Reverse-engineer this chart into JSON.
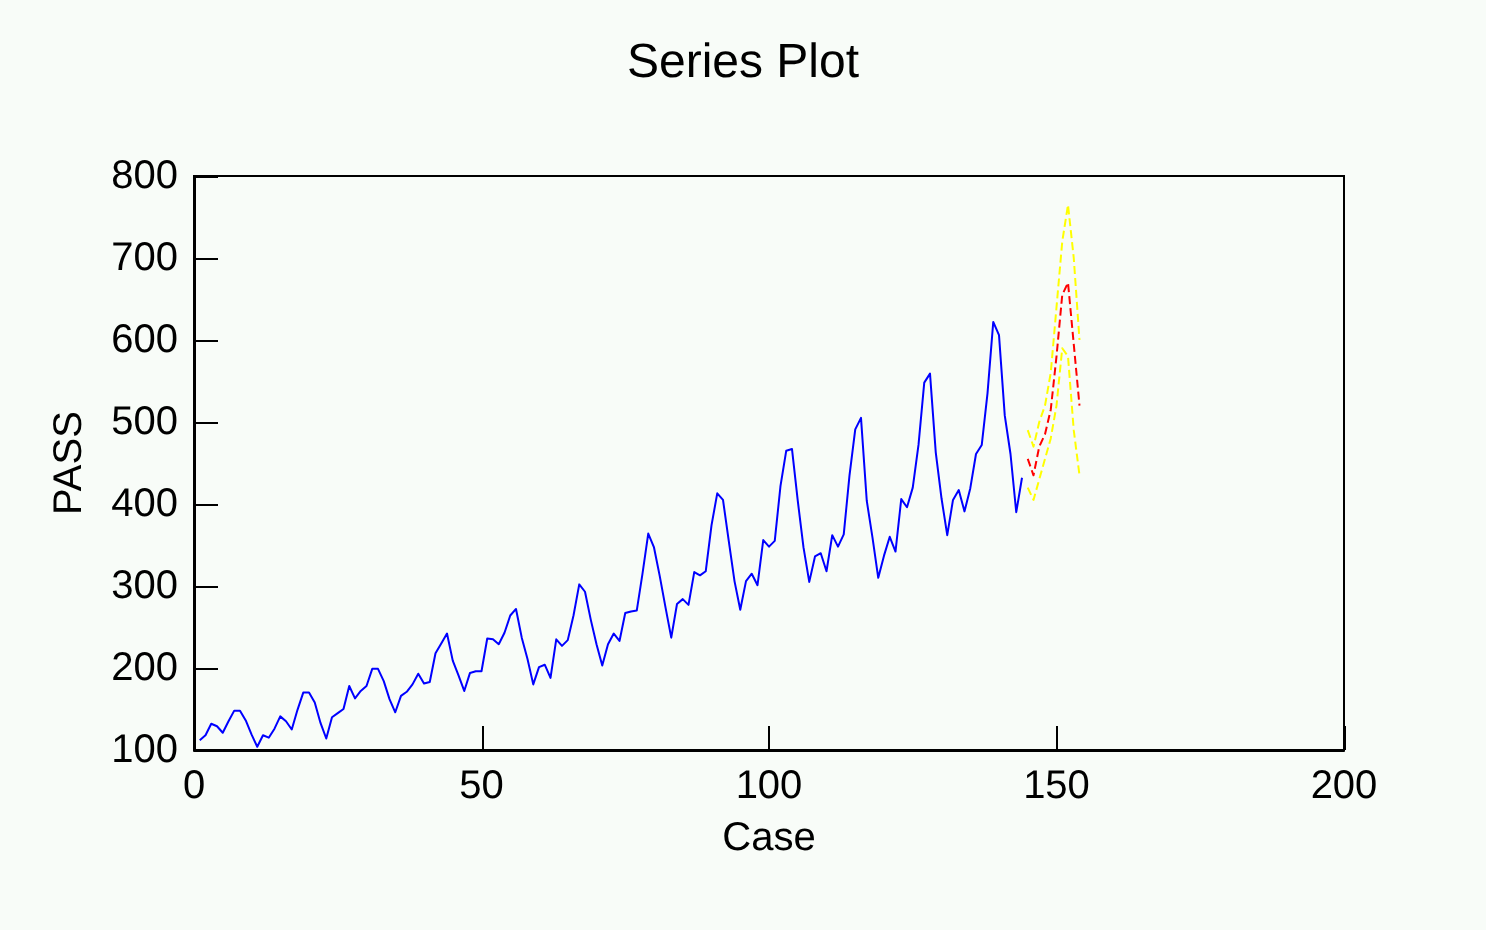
{
  "chart_data": {
    "type": "line",
    "title": "Series Plot",
    "xlabel": "Case",
    "ylabel": "PASS",
    "xlim": [
      0,
      200
    ],
    "xticks": [
      0,
      50,
      100,
      150,
      200
    ],
    "ylim": [
      100,
      800
    ],
    "yticks": [
      100,
      200,
      300,
      400,
      500,
      600,
      700,
      800
    ],
    "grid": false,
    "marker": "none",
    "series": [
      {
        "color": "#0000ff",
        "line_style": "solid",
        "x": [
          1,
          2,
          3,
          4,
          5,
          6,
          7,
          8,
          9,
          10,
          11,
          12,
          13,
          14,
          15,
          16,
          17,
          18,
          19,
          20,
          21,
          22,
          23,
          24,
          25,
          26,
          27,
          28,
          29,
          30,
          31,
          32,
          33,
          34,
          35,
          36,
          37,
          38,
          39,
          40,
          41,
          42,
          43,
          44,
          45,
          46,
          47,
          48,
          49,
          50,
          51,
          52,
          53,
          54,
          55,
          56,
          57,
          58,
          59,
          60,
          61,
          62,
          63,
          64,
          65,
          66,
          67,
          68,
          69,
          70,
          71,
          72,
          73,
          74,
          75,
          76,
          77,
          78,
          79,
          80,
          81,
          82,
          83,
          84,
          85,
          86,
          87,
          88,
          89,
          90,
          91,
          92,
          93,
          94,
          95,
          96,
          97,
          98,
          99,
          100,
          101,
          102,
          103,
          104,
          105,
          106,
          107,
          108,
          109,
          110,
          111,
          112,
          113,
          114,
          115,
          116,
          117,
          118,
          119,
          120,
          121,
          122,
          123,
          124,
          125,
          126,
          127,
          128,
          129,
          130,
          131,
          132,
          133,
          134,
          135,
          136,
          137,
          138,
          139,
          140,
          141,
          142,
          143,
          144
        ],
        "values": [
          112,
          118,
          132,
          129,
          121,
          135,
          148,
          148,
          136,
          119,
          104,
          118,
          115,
          126,
          141,
          135,
          125,
          149,
          170,
          170,
          158,
          133,
          114,
          140,
          145,
          150,
          178,
          163,
          172,
          178,
          199,
          199,
          184,
          162,
          146,
          166,
          171,
          180,
          193,
          181,
          183,
          218,
          230,
          242,
          209,
          191,
          172,
          194,
          196,
          196,
          236,
          235,
          229,
          243,
          264,
          272,
          237,
          211,
          180,
          201,
          204,
          188,
          235,
          227,
          234,
          264,
          302,
          293,
          259,
          229,
          203,
          229,
          242,
          233,
          267,
          269,
          270,
          315,
          364,
          347,
          312,
          274,
          237,
          278,
          284,
          277,
          317,
          313,
          318,
          374,
          413,
          405,
          355,
          306,
          271,
          306,
          315,
          301,
          356,
          348,
          355,
          422,
          465,
          467,
          404,
          347,
          305,
          336,
          340,
          318,
          362,
          348,
          363,
          435,
          491,
          505,
          404,
          359,
          310,
          337,
          360,
          342,
          406,
          396,
          420,
          472,
          548,
          559,
          463,
          407,
          362,
          405,
          417,
          391,
          419,
          461,
          472,
          535,
          622,
          606,
          508,
          461,
          390,
          432
        ]
      },
      {
        "color": "#ff0000",
        "line_style": "dashed",
        "x": [
          145,
          146,
          147,
          148,
          149,
          150,
          151,
          152,
          153,
          154
        ],
        "values": [
          455,
          435,
          470,
          485,
          515,
          580,
          655,
          670,
          595,
          520
        ]
      },
      {
        "color": "#ffff00",
        "line_style": "dashed",
        "x": [
          145,
          146,
          147,
          148,
          149,
          150,
          151,
          152,
          153,
          154
        ],
        "values": [
          490,
          470,
          500,
          520,
          560,
          640,
          720,
          765,
          700,
          600
        ]
      },
      {
        "color": "#ffff00",
        "line_style": "dashed",
        "x": [
          145,
          146,
          147,
          148,
          149,
          150,
          151,
          152,
          153,
          154
        ],
        "values": [
          420,
          405,
          430,
          455,
          480,
          520,
          590,
          580,
          490,
          435
        ]
      }
    ]
  }
}
